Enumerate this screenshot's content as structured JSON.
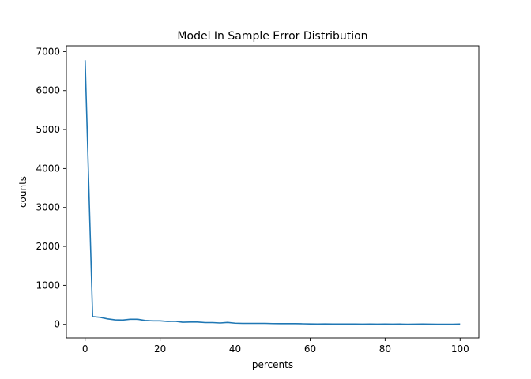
{
  "chart_data": {
    "type": "line",
    "title": "Model In Sample Error Distribution",
    "xlabel": "percents",
    "ylabel": "counts",
    "xlim": [
      -5,
      105
    ],
    "ylim": [
      -350,
      7150
    ],
    "xticks": [
      0,
      20,
      40,
      60,
      80,
      100
    ],
    "yticks": [
      0,
      1000,
      2000,
      3000,
      4000,
      5000,
      6000,
      7000
    ],
    "grid": false,
    "legend": "none",
    "series": [
      {
        "color": "#1f77b4",
        "x": [
          0,
          2,
          4,
          6,
          8,
          10,
          12,
          14,
          16,
          18,
          20,
          22,
          24,
          26,
          28,
          30,
          32,
          34,
          36,
          38,
          40,
          42,
          44,
          46,
          48,
          50,
          52,
          54,
          56,
          58,
          60,
          62,
          64,
          66,
          68,
          70,
          72,
          74,
          76,
          78,
          80,
          82,
          84,
          86,
          88,
          90,
          92,
          94,
          96,
          98,
          100
        ],
        "y": [
          6780,
          200,
          180,
          140,
          115,
          110,
          130,
          130,
          100,
          90,
          90,
          75,
          80,
          55,
          60,
          60,
          45,
          45,
          35,
          50,
          30,
          25,
          25,
          25,
          25,
          20,
          18,
          18,
          18,
          15,
          12,
          10,
          12,
          10,
          10,
          8,
          8,
          6,
          8,
          6,
          8,
          6,
          8,
          5,
          6,
          8,
          6,
          5,
          5,
          5,
          8
        ]
      }
    ]
  }
}
